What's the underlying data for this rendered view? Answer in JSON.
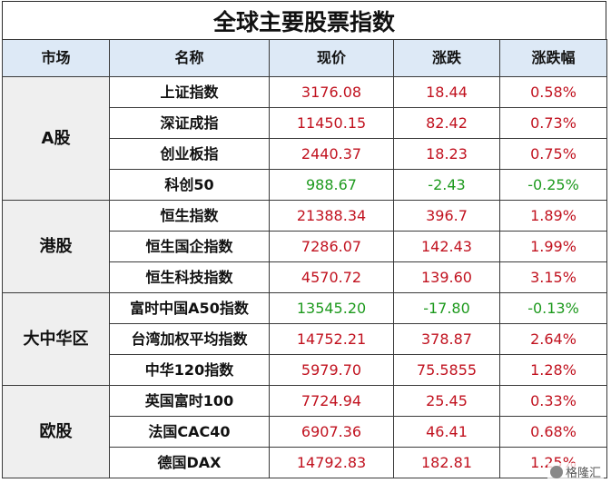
{
  "title": "全球主要股票指数",
  "headers": [
    "市场",
    "名称",
    "现价",
    "涨跌",
    "涨跌幅"
  ],
  "groups": [
    {
      "market": "A股",
      "rows": [
        {
          "name": "上证指数",
          "price": "3176.08",
          "change": "18.44",
          "pct": "0.58%",
          "dir": "up"
        },
        {
          "name": "深证成指",
          "price": "11450.15",
          "change": "82.42",
          "pct": "0.73%",
          "dir": "up"
        },
        {
          "name": "创业板指",
          "price": "2440.37",
          "change": "18.23",
          "pct": "0.75%",
          "dir": "up"
        },
        {
          "name": "科创50",
          "price": "988.67",
          "change": "-2.43",
          "pct": "-0.25%",
          "dir": "down"
        }
      ]
    },
    {
      "market": "港股",
      "rows": [
        {
          "name": "恒生指数",
          "price": "21388.34",
          "change": "396.7",
          "pct": "1.89%",
          "dir": "up"
        },
        {
          "name": "恒生国企指数",
          "price": "7286.07",
          "change": "142.43",
          "pct": "1.99%",
          "dir": "up"
        },
        {
          "name": "恒生科技指数",
          "price": "4570.72",
          "change": "139.60",
          "pct": "3.15%",
          "dir": "up"
        }
      ]
    },
    {
      "market": "大中华区",
      "rows": [
        {
          "name": "富时中国A50指数",
          "price": "13545.20",
          "change": "-17.80",
          "pct": "-0.13%",
          "dir": "down"
        },
        {
          "name": "台湾加权平均指数",
          "price": "14752.21",
          "change": "378.87",
          "pct": "2.64%",
          "dir": "up"
        },
        {
          "name": "中华120指数",
          "price": "5979.70",
          "change": "75.5855",
          "pct": "1.28%",
          "dir": "up"
        }
      ]
    },
    {
      "market": "欧股",
      "rows": [
        {
          "name": "英国富时100",
          "price": "7724.94",
          "change": "25.45",
          "pct": "0.33%",
          "dir": "up"
        },
        {
          "name": "法国CAC40",
          "price": "6907.36",
          "change": "46.41",
          "pct": "0.68%",
          "dir": "up"
        },
        {
          "name": "德国DAX",
          "price": "14792.83",
          "change": "182.81",
          "pct": "1.25%",
          "dir": "up"
        }
      ]
    }
  ],
  "watermark": "格隆汇",
  "colors": {
    "up": "#c1121f",
    "down": "#1e9a1e",
    "header_bg": "#dde9f6",
    "market_bg": "#efefef"
  }
}
